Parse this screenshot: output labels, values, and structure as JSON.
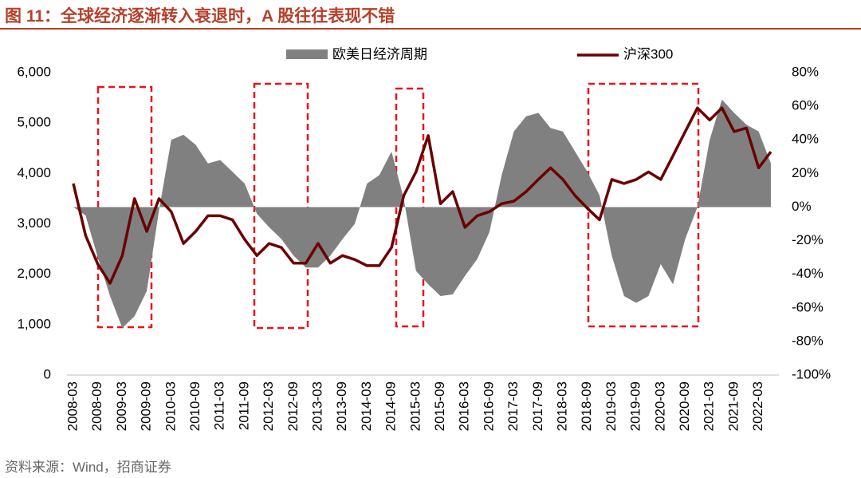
{
  "header": {
    "title": "图 11：全球经济逐渐转入衰退时，A 股往往表现不错"
  },
  "source": "资料来源：Wind，招商证券",
  "chart_data": {
    "type": "area-line",
    "categories": [
      "2008-03",
      null,
      "2008-09",
      null,
      "2009-03",
      null,
      "2009-09",
      null,
      "2010-03",
      null,
      "2010-09",
      null,
      "2011-03",
      null,
      "2011-09",
      null,
      "2012-03",
      null,
      "2012-09",
      null,
      "2013-03",
      null,
      "2013-09",
      null,
      "2014-03",
      null,
      "2014-09",
      null,
      "2015-03",
      null,
      "2015-09",
      null,
      "2016-03",
      null,
      "2016-09",
      null,
      "2017-03",
      null,
      "2017-09",
      null,
      "2018-03",
      null,
      "2018-09",
      null,
      "2019-03",
      null,
      "2019-09",
      null,
      "2020-03",
      null,
      "2020-09",
      null,
      "2021-03",
      null,
      "2021-09",
      null,
      "2022-03",
      null
    ],
    "series": [
      {
        "name": "欧美日经济周期",
        "kind": "area",
        "axis": "y2",
        "color": "#808080",
        "values": [
          0,
          -5,
          -30,
          -53,
          -72,
          -65,
          -50,
          -2,
          40,
          43,
          37,
          26,
          28,
          21,
          14,
          -4,
          -12,
          -19,
          -29,
          -36,
          -36,
          -29,
          -19,
          -10,
          14,
          19,
          33,
          5,
          -38,
          -46,
          -53,
          -52,
          -41,
          -31,
          -15,
          19,
          45,
          54,
          56,
          47,
          45,
          33,
          21,
          7,
          -29,
          -53,
          -57,
          -53,
          -34,
          -46,
          -19,
          0,
          40,
          64,
          56,
          49,
          45,
          26
        ]
      },
      {
        "name": "沪深300",
        "kind": "line",
        "axis": "y",
        "color": "#6b0000",
        "values": [
          3800,
          2770,
          2200,
          1820,
          2370,
          3500,
          2850,
          3500,
          3240,
          2610,
          2850,
          3160,
          3160,
          3080,
          2690,
          2370,
          2610,
          2530,
          2220,
          2220,
          2610,
          2220,
          2370,
          2290,
          2170,
          2170,
          2530,
          3560,
          4030,
          4750,
          3400,
          3640,
          2930,
          3160,
          3240,
          3400,
          3450,
          3640,
          3880,
          4110,
          3880,
          3560,
          3310,
          3080,
          3880,
          3800,
          3880,
          4030,
          3880,
          4350,
          4830,
          5300,
          5060,
          5300,
          4830,
          4900,
          4110,
          4430
        ]
      }
    ],
    "ylim": [
      0,
      6000
    ],
    "yticks": [
      0,
      {
        "value": 1000,
        "label": "1,000"
      },
      {
        "value": 2000,
        "label": "2,000"
      },
      {
        "value": 3000,
        "label": "3,000"
      },
      {
        "value": 4000,
        "label": "4,000"
      },
      {
        "value": 5000,
        "label": "5,000"
      },
      {
        "value": 6000,
        "label": "6,000"
      }
    ],
    "y2lim": [
      -100,
      80
    ],
    "y2ticks": [
      {
        "value": -100,
        "label": "-100%"
      },
      {
        "value": -80,
        "label": "-80%"
      },
      {
        "value": -60,
        "label": "-60%"
      },
      {
        "value": -40,
        "label": "-40%"
      },
      {
        "value": -20,
        "label": "-20%"
      },
      {
        "value": 0,
        "label": "0%"
      },
      {
        "value": 20,
        "label": "20%"
      },
      {
        "value": 40,
        "label": "40%"
      },
      {
        "value": 60,
        "label": "60%"
      },
      {
        "value": 80,
        "label": "80%"
      }
    ],
    "legend": "top",
    "grid": false
  }
}
